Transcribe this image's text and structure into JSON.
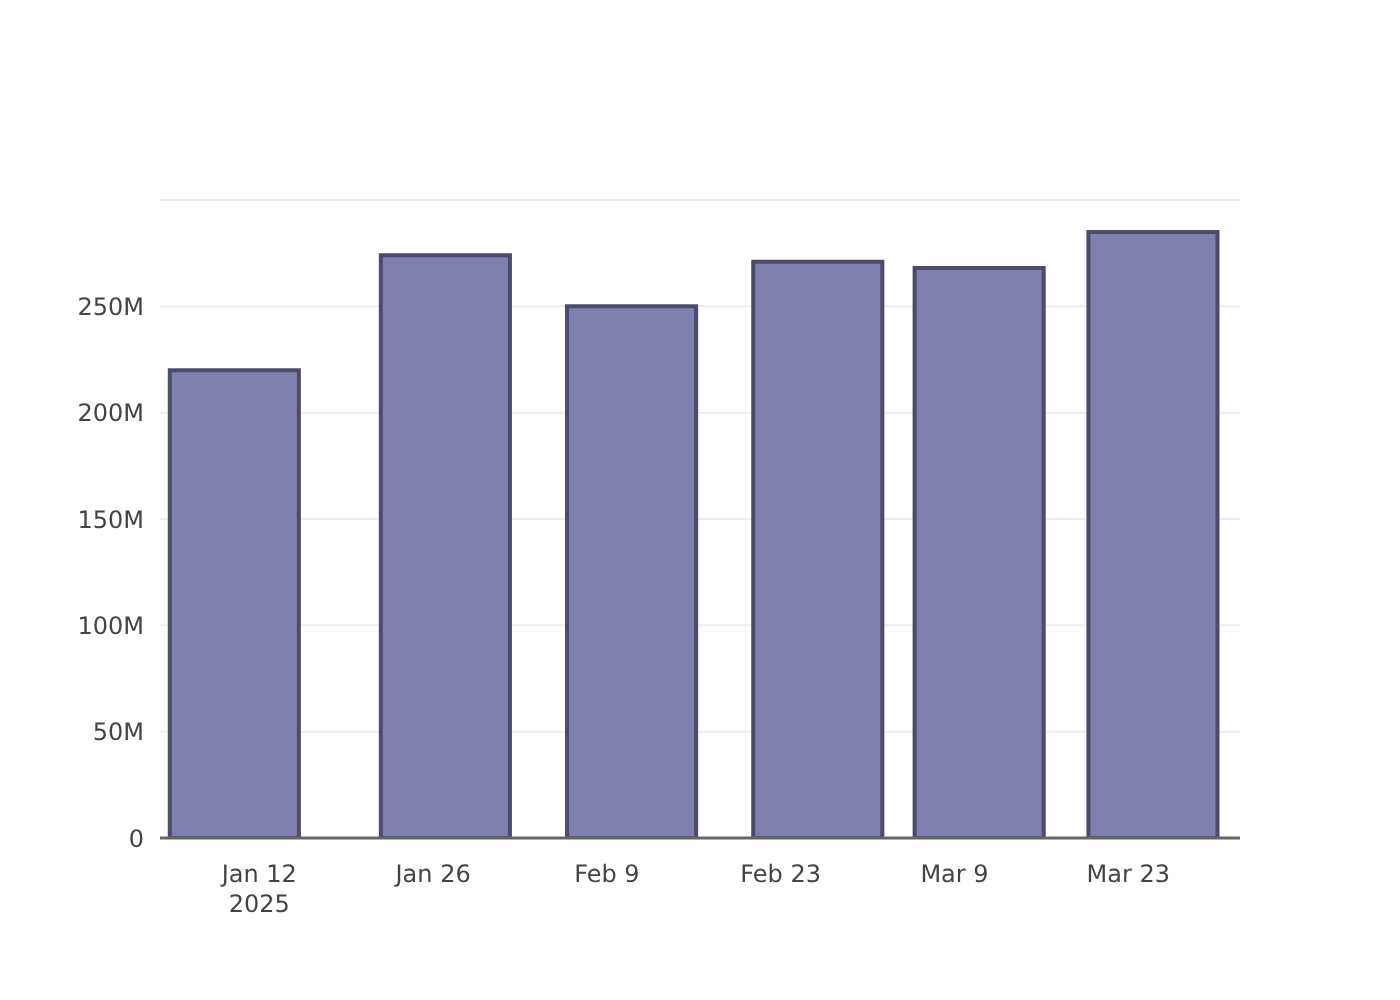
{
  "chart_data": {
    "type": "bar",
    "x": [
      "2025-01-10",
      "2025-01-27",
      "2025-02-11",
      "2025-02-26",
      "2025-03-11",
      "2025-03-25"
    ],
    "values": [
      220000000,
      274000000,
      250000000,
      271000000,
      268000000,
      285000000
    ],
    "color": "#7f7fb0",
    "xlim": [
      "2025-01-04",
      "2025-04-01"
    ],
    "xticks": [
      {
        "value": "2025-01-12",
        "label": "Jan 12\n2025"
      },
      {
        "value": "2025-01-26",
        "label": "Jan 26"
      },
      {
        "value": "2025-02-09",
        "label": "Feb 9"
      },
      {
        "value": "2025-02-23",
        "label": "Feb 23"
      },
      {
        "value": "2025-03-09",
        "label": "Mar 9"
      },
      {
        "value": "2025-03-23",
        "label": "Mar 23"
      }
    ],
    "ylim": [
      0,
      300000000
    ],
    "yticks": [
      0,
      {
        "value": 50000000,
        "label": "50M"
      },
      {
        "value": 100000000,
        "label": "100M"
      },
      {
        "value": 150000000,
        "label": "150M"
      },
      {
        "value": 200000000,
        "label": "200M"
      },
      {
        "value": 250000000,
        "label": "250M"
      }
    ],
    "grid": "y"
  }
}
